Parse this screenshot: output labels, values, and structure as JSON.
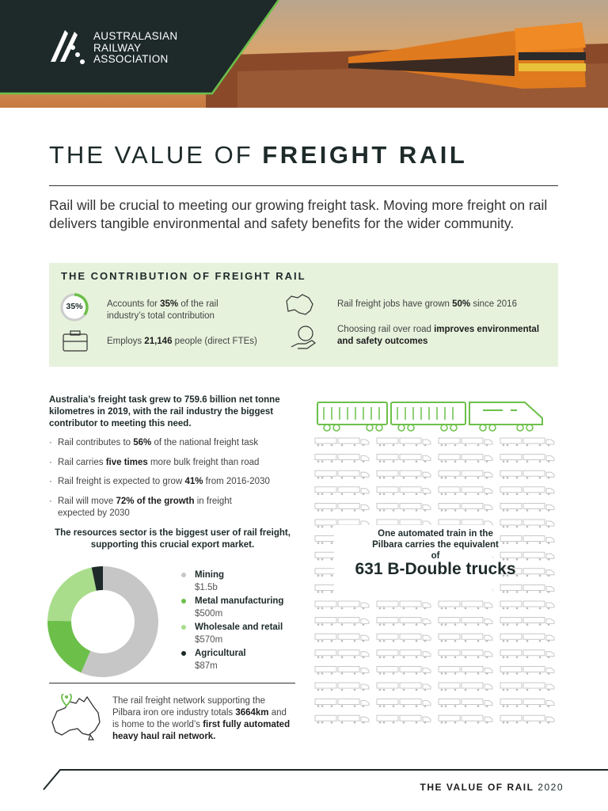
{
  "header": {
    "logo_text": [
      "AUSTRALASIAN",
      "RAILWAY",
      "ASSOCIATION"
    ]
  },
  "title": {
    "light": "THE VALUE OF",
    "bold": "FREIGHT RAIL"
  },
  "intro": "Rail will be crucial to meeting our growing freight task. Moving more freight on rail delivers tangible environmental and safety benefits for the wider community.",
  "contribution": {
    "heading": "THE CONTRIBUTION OF FREIGHT RAIL",
    "icon_label": "35%",
    "items": [
      [
        "Accounts for ",
        "35%",
        " of the rail industry’s total contribution"
      ],
      [
        "Employs ",
        "21,146",
        " people (direct FTEs)"
      ],
      [
        "Rail freight jobs have grown ",
        "50%",
        " since 2016"
      ],
      [
        "Choosing rail over road ",
        "improves environmental and safety outcomes"
      ]
    ]
  },
  "freight_task": {
    "lead": "Australia’s freight task grew to 759.6 billion net tonne kilometres in 2019, with the rail industry the biggest contributor to meeting this need.",
    "bullets": [
      [
        "Rail contributes to ",
        "56%",
        " of the national freight task"
      ],
      [
        "Rail carries ",
        "five times",
        " more bulk freight than road"
      ],
      [
        "Rail freight is expected to grow ",
        "41%",
        " from 2016-2030"
      ],
      [
        "Rail will move ",
        "72% of the growth",
        " in freight expected by 2030"
      ]
    ]
  },
  "resources": {
    "heading": "The resources sector is the biggest user of rail freight, supporting this crucial export market.",
    "chart_data": {
      "type": "donut",
      "categories": [
        "Mining",
        "Metal manufacturing",
        "Wholesale and retail",
        "Agricultural"
      ],
      "values": [
        1500,
        500,
        570,
        87
      ],
      "value_labels": [
        "$1.5b",
        "$500m",
        "$570m",
        "$87m"
      ],
      "colors": [
        "#c6c6c6",
        "#6cc04a",
        "#a9dd8c",
        "#1e2a2a"
      ]
    }
  },
  "pilbara": [
    "The rail freight network supporting the Pilbara iron ore industry totals ",
    "3664km",
    " and is home to the world’s ",
    "first fully automated heavy haul rail network."
  ],
  "trucks": {
    "caption": "One automated train in the Pilbara carries the equivalent of",
    "big": "631 B-Double trucks"
  },
  "footer": {
    "bold": "THE VALUE OF RAIL",
    "year": "2020"
  }
}
